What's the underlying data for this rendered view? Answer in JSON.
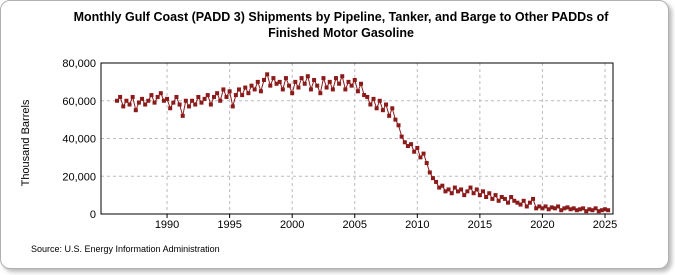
{
  "chart_data": {
    "type": "line",
    "title": "Monthly Gulf Coast (PADD 3) Shipments by Pipeline, Tanker, and Barge to Other PADDs of Finished Motor Gasoline",
    "y_label": "Thousand Barrels",
    "source": "Source: U.S. Energy Information Administration",
    "xlim": [
      1984.72,
      2025.64
    ],
    "xticks": [
      1990,
      1995,
      2000,
      2005,
      2010,
      2015,
      2020,
      2025
    ],
    "ylim": [
      0,
      80000
    ],
    "yticks": [
      0,
      {
        "value": 20000,
        "label": "20,000"
      },
      {
        "value": 40000,
        "label": "40,000"
      },
      {
        "value": 60000,
        "label": "60,000"
      },
      {
        "value": 80000,
        "label": "80,000"
      }
    ],
    "grid": true,
    "x": [
      1986,
      1986.25,
      1986.5,
      1986.75,
      1987,
      1987.25,
      1987.5,
      1987.75,
      1988,
      1988.25,
      1988.5,
      1988.75,
      1989,
      1989.25,
      1989.5,
      1989.75,
      1990,
      1990.25,
      1990.5,
      1990.75,
      1991,
      1991.25,
      1991.5,
      1991.75,
      1992,
      1992.25,
      1992.5,
      1992.75,
      1993,
      1993.25,
      1993.5,
      1993.75,
      1994,
      1994.25,
      1994.5,
      1994.75,
      1995,
      1995.25,
      1995.5,
      1995.75,
      1996,
      1996.25,
      1996.5,
      1996.75,
      1997,
      1997.25,
      1997.5,
      1997.75,
      1998,
      1998.25,
      1998.5,
      1998.75,
      1999,
      1999.25,
      1999.5,
      1999.75,
      2000,
      2000.25,
      2000.5,
      2000.75,
      2001,
      2001.25,
      2001.5,
      2001.75,
      2002,
      2002.25,
      2002.5,
      2002.75,
      2003,
      2003.25,
      2003.5,
      2003.75,
      2004,
      2004.25,
      2004.5,
      2004.75,
      2005,
      2005.25,
      2005.5,
      2005.75,
      2006,
      2006.25,
      2006.5,
      2006.75,
      2007,
      2007.25,
      2007.5,
      2007.75,
      2008,
      2008.25,
      2008.5,
      2008.75,
      2009,
      2009.25,
      2009.5,
      2009.75,
      2010,
      2010.25,
      2010.5,
      2010.75,
      2011,
      2011.25,
      2011.5,
      2011.75,
      2012,
      2012.25,
      2012.5,
      2012.75,
      2013,
      2013.25,
      2013.5,
      2013.75,
      2014,
      2014.25,
      2014.5,
      2014.75,
      2015,
      2015.25,
      2015.5,
      2015.75,
      2016,
      2016.25,
      2016.5,
      2016.75,
      2017,
      2017.25,
      2017.5,
      2017.75,
      2018,
      2018.25,
      2018.5,
      2018.75,
      2019,
      2019.25,
      2019.5,
      2019.75,
      2020,
      2020.25,
      2020.5,
      2020.75,
      2021,
      2021.25,
      2021.5,
      2021.75,
      2022,
      2022.25,
      2022.5,
      2022.75,
      2023,
      2023.25,
      2023.5,
      2023.75,
      2024,
      2024.25,
      2024.5,
      2024.75,
      2025,
      2025.25
    ],
    "series": [
      {
        "color": "#8b1a1a",
        "values": [
          60000,
          62000,
          57000,
          60000,
          58000,
          62000,
          55000,
          59000,
          61000,
          58000,
          60000,
          63000,
          59000,
          62000,
          64000,
          60000,
          61000,
          56000,
          59000,
          62000,
          58000,
          52000,
          60000,
          57000,
          60000,
          58000,
          62000,
          59000,
          61000,
          63000,
          58000,
          62000,
          64000,
          60000,
          66000,
          62000,
          65000,
          57000,
          63000,
          66000,
          63000,
          67000,
          64000,
          68000,
          66000,
          70000,
          65000,
          71000,
          74000,
          68000,
          72000,
          69000,
          70000,
          66000,
          72000,
          68000,
          64000,
          70000,
          67000,
          72000,
          69000,
          73000,
          66000,
          71000,
          68000,
          64000,
          72000,
          67000,
          70000,
          66000,
          72000,
          69000,
          73000,
          66000,
          70000,
          68000,
          71000,
          65000,
          69000,
          63000,
          62000,
          58000,
          61000,
          56000,
          60000,
          55000,
          58000,
          52000,
          56000,
          50000,
          47000,
          41000,
          38000,
          36000,
          37000,
          33000,
          35000,
          30000,
          32000,
          27000,
          22000,
          19000,
          17000,
          14000,
          15000,
          12000,
          13000,
          11000,
          14000,
          12000,
          13000,
          10000,
          12000,
          14000,
          11000,
          13000,
          10000,
          12000,
          9000,
          11000,
          8000,
          10000,
          7000,
          9000,
          8000,
          6000,
          9000,
          7000,
          6000,
          5000,
          7000,
          4000,
          6000,
          8000,
          3000,
          4000,
          3000,
          4000,
          2500,
          3500,
          3000,
          4000,
          2000,
          3000,
          3500,
          2500,
          3000,
          2000,
          2500,
          3000,
          1500,
          2500,
          2000,
          3000,
          1500,
          2000,
          2500,
          2000
        ]
      }
    ]
  }
}
